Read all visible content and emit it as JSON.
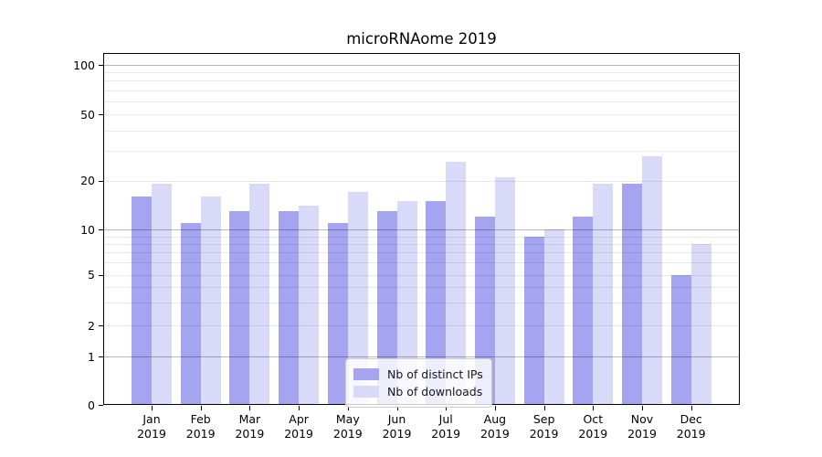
{
  "chart_data": {
    "type": "bar",
    "title": "microRNAome 2019",
    "categories": [
      "Jan",
      "Feb",
      "Mar",
      "Apr",
      "May",
      "Jun",
      "Jul",
      "Aug",
      "Sep",
      "Oct",
      "Nov",
      "Dec"
    ],
    "category_year": "2019",
    "series": [
      {
        "name": "Nb of distinct IPs",
        "color": "#a4a4f0",
        "values": [
          16,
          11,
          13,
          13,
          11,
          13,
          15,
          12,
          9,
          12,
          19,
          5
        ]
      },
      {
        "name": "Nb of downloads",
        "color": "#d9d9f8",
        "values": [
          19,
          16,
          19,
          14,
          17,
          15,
          26,
          21,
          10,
          19,
          28,
          8
        ]
      }
    ],
    "yaxis": {
      "scale": "log-like (0 baseline, log above 1)",
      "ticks": [
        100,
        50,
        20,
        10,
        5,
        2,
        1,
        0
      ],
      "major_gridlines": [
        1,
        10,
        100
      ],
      "minor_gridlines": [
        2,
        3,
        4,
        5,
        6,
        7,
        8,
        9,
        20,
        30,
        40,
        50,
        60,
        70,
        80,
        90
      ],
      "range": [
        0,
        100
      ]
    },
    "grid": true,
    "legend": {
      "position": "lower-center"
    }
  }
}
